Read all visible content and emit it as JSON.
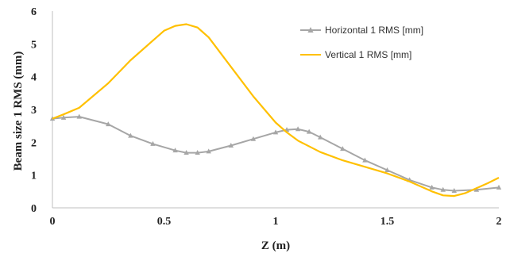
{
  "chart_data": {
    "type": "line",
    "title": "",
    "xlabel": "Z (m)",
    "ylabel": "Beam size 1 RMS (mm)",
    "xlim": [
      0,
      2
    ],
    "ylim": [
      0,
      6
    ],
    "xticks": [
      "0",
      "0.5",
      "1",
      "1.5",
      "2"
    ],
    "yticks": [
      "0",
      "1",
      "2",
      "3",
      "4",
      "5",
      "6"
    ],
    "grid": false,
    "legend": "top-right",
    "series": [
      {
        "name": "Horizontal 1 RMS [mm]",
        "color": "#a6a6a6",
        "marker": "triangle",
        "x": [
          0,
          0.05,
          0.12,
          0.25,
          0.35,
          0.45,
          0.55,
          0.6,
          0.65,
          0.7,
          0.8,
          0.9,
          1.0,
          1.05,
          1.1,
          1.15,
          1.2,
          1.3,
          1.4,
          1.5,
          1.6,
          1.7,
          1.75,
          1.8,
          1.9,
          2.0
        ],
        "y": [
          2.72,
          2.75,
          2.78,
          2.55,
          2.2,
          1.95,
          1.75,
          1.68,
          1.68,
          1.72,
          1.9,
          2.1,
          2.3,
          2.38,
          2.4,
          2.32,
          2.15,
          1.8,
          1.45,
          1.15,
          0.85,
          0.62,
          0.55,
          0.52,
          0.55,
          0.62
        ]
      },
      {
        "name": "Vertical 1 RMS [mm]",
        "color": "#ffc000",
        "marker": "none",
        "x": [
          0,
          0.05,
          0.12,
          0.25,
          0.35,
          0.45,
          0.5,
          0.55,
          0.6,
          0.65,
          0.7,
          0.8,
          0.9,
          1.0,
          1.05,
          1.1,
          1.2,
          1.3,
          1.4,
          1.5,
          1.6,
          1.7,
          1.75,
          1.8,
          1.85,
          1.9,
          1.95,
          2.0
        ],
        "y": [
          2.72,
          2.85,
          3.05,
          3.8,
          4.5,
          5.1,
          5.4,
          5.55,
          5.6,
          5.5,
          5.2,
          4.3,
          3.4,
          2.6,
          2.3,
          2.05,
          1.7,
          1.45,
          1.25,
          1.05,
          0.8,
          0.5,
          0.38,
          0.36,
          0.45,
          0.6,
          0.75,
          0.92
        ]
      }
    ]
  }
}
